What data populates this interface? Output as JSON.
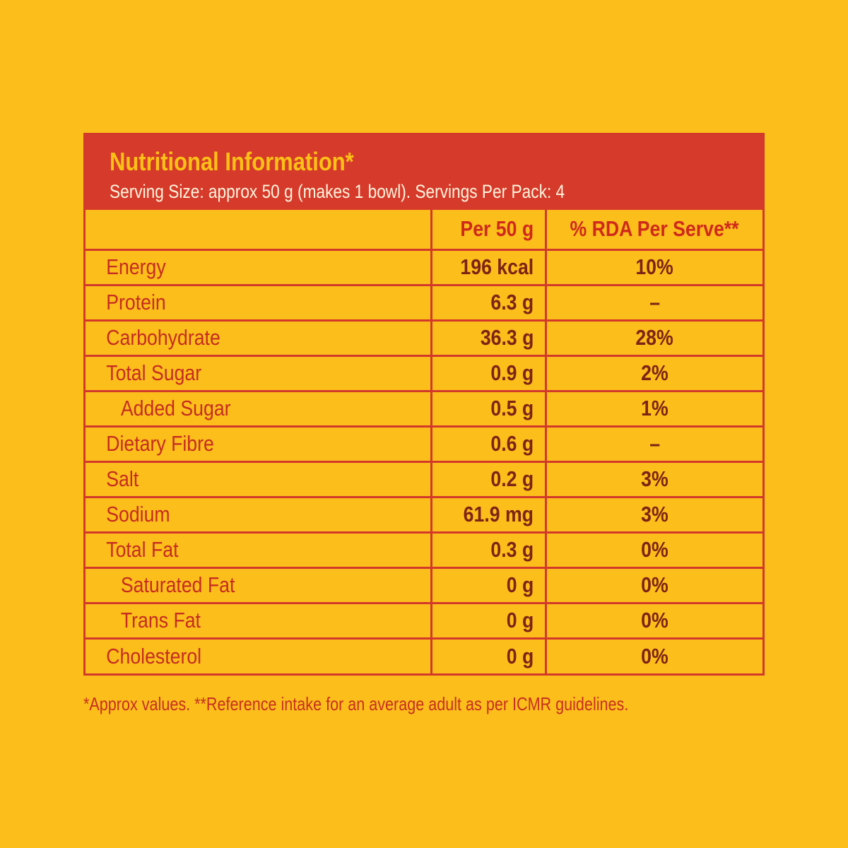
{
  "header": {
    "title": "Nutritional Information*",
    "subtitle": "Serving Size: approx 50 g (makes 1 bowl). Servings Per Pack: 4"
  },
  "columns": {
    "nutrient": "",
    "per": "Per 50 g",
    "rda": "% RDA Per Serve**"
  },
  "rows": [
    {
      "label": "Energy",
      "value": "196 kcal",
      "rda": "10%"
    },
    {
      "label": "Protein",
      "value": "6.3 g",
      "rda": "–"
    },
    {
      "label": "Carbohydrate",
      "value": "36.3 g",
      "rda": "28%"
    },
    {
      "label": "Total Sugar",
      "value": "0.9 g",
      "rda": "2%"
    },
    {
      "label": "Added Sugar",
      "value": "0.5 g",
      "rda": "1%"
    },
    {
      "label": "Dietary Fibre",
      "value": "0.6 g",
      "rda": "–"
    },
    {
      "label": "Salt",
      "value": "0.2 g",
      "rda": "3%"
    },
    {
      "label": "Sodium",
      "value": "61.9 mg",
      "rda": "3%"
    },
    {
      "label": "Total Fat",
      "value": "0.3 g",
      "rda": "0%"
    },
    {
      "label": "Saturated Fat",
      "value": "0 g",
      "rda": "0%"
    },
    {
      "label": "Trans Fat",
      "value": "0 g",
      "rda": "0%"
    },
    {
      "label": "Cholesterol",
      "value": "0 g",
      "rda": "0%"
    }
  ],
  "footnote": "*Approx values. **Reference intake for an average adult as per ICMR guidelines.",
  "colors": {
    "background": "#FCBE1B",
    "header_band": "#D63A2A",
    "title_text": "#FCC116",
    "border": "#D2392B",
    "label_text": "#C62D20",
    "value_text": "#7E2414"
  }
}
